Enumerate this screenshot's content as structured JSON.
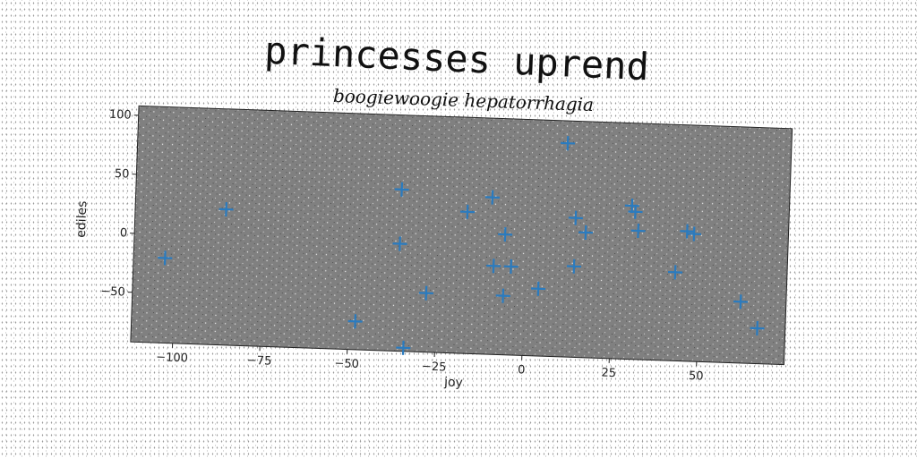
{
  "chart_data": {
    "type": "scatter",
    "suptitle": "princesses uprend",
    "title": "boogiewoogie hepatorrhagia",
    "xlabel": "joy",
    "ylabel": "ediles",
    "xlim": [
      -112,
      75
    ],
    "ylim": [
      -92,
      108
    ],
    "xticks": [
      -100,
      -75,
      -50,
      -25,
      0,
      25,
      50
    ],
    "xtick_labels": [
      "−100",
      "−75",
      "−50",
      "−25",
      "0",
      "25",
      "50"
    ],
    "yticks": [
      -50,
      0,
      50,
      100
    ],
    "ytick_labels": [
      "−50",
      "0",
      "50",
      "100"
    ],
    "marker": "plus",
    "marker_color": "#2a7bbf",
    "plot_background": "#808080",
    "grid": false,
    "series": [
      {
        "name": "",
        "points": [
          [
            -103,
            -20
          ],
          [
            -86,
            23
          ],
          [
            -48,
            -68
          ],
          [
            -36,
            45
          ],
          [
            -36,
            -1
          ],
          [
            -28,
            -42
          ],
          [
            -34,
            -89
          ],
          [
            -17,
            28
          ],
          [
            -10,
            41
          ],
          [
            -6,
            10
          ],
          [
            -9,
            -17
          ],
          [
            -4,
            -17
          ],
          [
            -6,
            -42
          ],
          [
            4,
            -35
          ],
          [
            11,
            89
          ],
          [
            14,
            26
          ],
          [
            17,
            14
          ],
          [
            14,
            -15
          ],
          [
            30,
            38
          ],
          [
            31,
            33
          ],
          [
            32,
            17
          ],
          [
            46,
            18
          ],
          [
            48,
            16
          ],
          [
            43,
            -17
          ],
          [
            62,
            -40
          ],
          [
            67,
            -62
          ]
        ]
      }
    ]
  }
}
